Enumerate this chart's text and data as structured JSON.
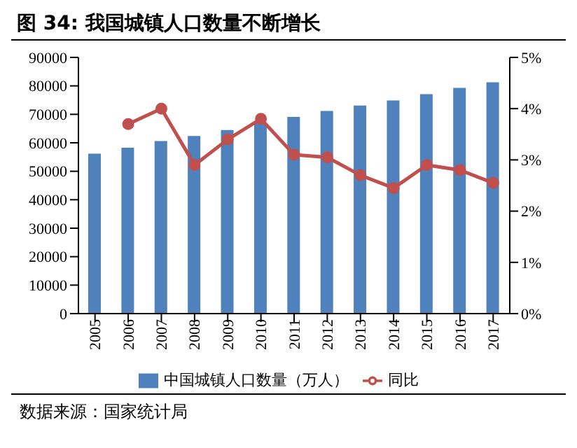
{
  "chart_data": {
    "type": "bar",
    "title": "图 34:  我国城镇人口数量不断增长",
    "categories": [
      "2005",
      "2006",
      "2007",
      "2008",
      "2009",
      "2010",
      "2011",
      "2012",
      "2013",
      "2014",
      "2015",
      "2016",
      "2017"
    ],
    "series": [
      {
        "name": "中国城镇人口数量（万人）",
        "color": "#4f81bd",
        "values": [
          56200,
          58300,
          60600,
          62400,
          64500,
          66900,
          69100,
          71200,
          73100,
          74900,
          77100,
          79300,
          81300
        ]
      },
      {
        "name": "同比",
        "type": "line",
        "axis": "y2",
        "color": "#c0504d",
        "marker": "circle",
        "values": [
          null,
          3.7,
          4.0,
          2.9,
          3.4,
          3.8,
          3.1,
          3.05,
          2.7,
          2.45,
          2.9,
          2.8,
          2.55
        ]
      }
    ],
    "ylim": [
      0,
      90000
    ],
    "yticks": [
      0,
      10000,
      20000,
      30000,
      40000,
      50000,
      60000,
      70000,
      80000,
      90000
    ],
    "y2lim": [
      0,
      5
    ],
    "y2ticks": [
      {
        "value": 0,
        "label": "0%"
      },
      {
        "value": 1,
        "label": "1%"
      },
      {
        "value": 2,
        "label": "2%"
      },
      {
        "value": 3,
        "label": "3%"
      },
      {
        "value": 4,
        "label": "4%"
      },
      {
        "value": 5,
        "label": "5%"
      }
    ],
    "grid": false,
    "legend": "bottom",
    "annotations": [
      "数据来源：国家统计局"
    ]
  }
}
